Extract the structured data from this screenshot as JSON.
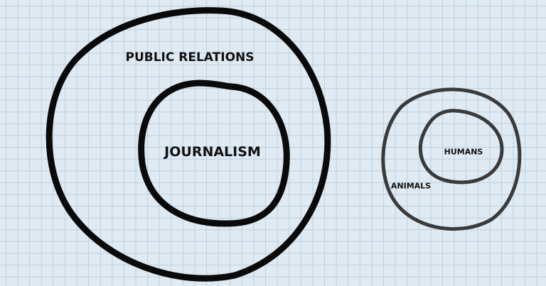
{
  "diagram": {
    "type": "nested circles",
    "left": {
      "outer_label": "PUBLIC RELATIONS",
      "inner_label": "JOURNALISM",
      "stroke_color": "#0a0a0a"
    },
    "right": {
      "outer_label": "ANIMALS",
      "inner_label": "HUMANS",
      "stroke_color": "#3a3a3a"
    },
    "background_color": "#dfeaf3",
    "grid_color": "#bccfdd"
  }
}
